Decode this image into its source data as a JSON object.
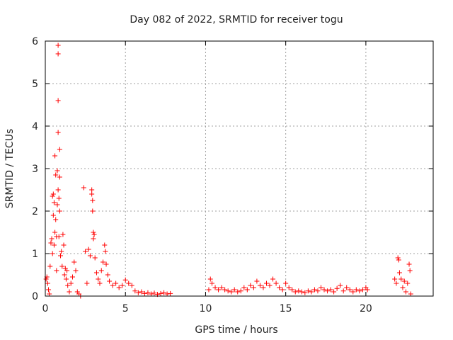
{
  "chart_data": {
    "type": "scatter",
    "title": "Day 082 of 2022, SRMTID for receiver togu",
    "xlabel": "GPS time / hours",
    "ylabel": "SRMTID / TECUs",
    "xlim": [
      0,
      24.2
    ],
    "ylim": [
      0,
      6
    ],
    "xticks": [
      0,
      5,
      10,
      15,
      20
    ],
    "xtick_labels": [
      "0",
      "5",
      "10",
      "15",
      "20"
    ],
    "yticks": [
      0,
      1,
      2,
      3,
      4,
      5,
      6
    ],
    "ytick_labels": [
      "0",
      "1",
      "2",
      "3",
      "4",
      "5",
      "6"
    ],
    "grid": true,
    "marker": "+",
    "color": "#ff0000",
    "series": [
      {
        "name": "SRMTID",
        "points": [
          [
            0.05,
            0.4
          ],
          [
            0.1,
            0.45
          ],
          [
            0.15,
            0.3
          ],
          [
            0.2,
            0.15
          ],
          [
            0.25,
            0.05
          ],
          [
            0.3,
            0.7
          ],
          [
            0.35,
            1.25
          ],
          [
            0.4,
            1.35
          ],
          [
            0.45,
            1.0
          ],
          [
            0.45,
            2.35
          ],
          [
            0.5,
            1.9
          ],
          [
            0.5,
            2.4
          ],
          [
            0.55,
            2.2
          ],
          [
            0.55,
            1.2
          ],
          [
            0.6,
            1.5
          ],
          [
            0.6,
            3.3
          ],
          [
            0.65,
            2.85
          ],
          [
            0.65,
            1.8
          ],
          [
            0.7,
            1.4
          ],
          [
            0.7,
            0.6
          ],
          [
            0.75,
            2.95
          ],
          [
            0.75,
            2.15
          ],
          [
            0.8,
            5.9
          ],
          [
            0.8,
            5.7
          ],
          [
            0.8,
            4.6
          ],
          [
            0.8,
            3.85
          ],
          [
            0.8,
            2.5
          ],
          [
            0.85,
            2.3
          ],
          [
            0.85,
            1.4
          ],
          [
            0.9,
            3.45
          ],
          [
            0.9,
            2.8
          ],
          [
            0.9,
            2.0
          ],
          [
            0.95,
            0.95
          ],
          [
            1.0,
            1.05
          ],
          [
            1.05,
            0.7
          ],
          [
            1.1,
            1.45
          ],
          [
            1.15,
            1.2
          ],
          [
            1.2,
            0.5
          ],
          [
            1.25,
            0.65
          ],
          [
            1.3,
            0.4
          ],
          [
            1.35,
            0.6
          ],
          [
            1.4,
            0.25
          ],
          [
            1.5,
            0.1
          ],
          [
            1.6,
            0.3
          ],
          [
            1.7,
            0.45
          ],
          [
            1.8,
            0.8
          ],
          [
            1.9,
            0.6
          ],
          [
            2.0,
            0.1
          ],
          [
            2.1,
            0.05
          ],
          [
            2.2,
            0.0
          ],
          [
            2.4,
            2.55
          ],
          [
            2.5,
            1.05
          ],
          [
            2.6,
            0.3
          ],
          [
            2.7,
            1.1
          ],
          [
            2.8,
            0.95
          ],
          [
            2.9,
            2.5
          ],
          [
            2.9,
            2.4
          ],
          [
            2.95,
            2.25
          ],
          [
            2.95,
            2.0
          ],
          [
            3.0,
            1.5
          ],
          [
            3.0,
            1.35
          ],
          [
            3.05,
            1.45
          ],
          [
            3.1,
            0.9
          ],
          [
            3.2,
            0.55
          ],
          [
            3.3,
            0.4
          ],
          [
            3.4,
            0.3
          ],
          [
            3.5,
            0.6
          ],
          [
            3.6,
            0.8
          ],
          [
            3.7,
            1.2
          ],
          [
            3.75,
            1.05
          ],
          [
            3.8,
            0.75
          ],
          [
            3.9,
            0.5
          ],
          [
            4.0,
            0.35
          ],
          [
            4.2,
            0.25
          ],
          [
            4.4,
            0.3
          ],
          [
            4.6,
            0.2
          ],
          [
            4.8,
            0.25
          ],
          [
            5.0,
            0.38
          ],
          [
            5.2,
            0.3
          ],
          [
            5.4,
            0.25
          ],
          [
            5.6,
            0.12
          ],
          [
            5.8,
            0.08
          ],
          [
            6.0,
            0.1
          ],
          [
            6.2,
            0.06
          ],
          [
            6.4,
            0.08
          ],
          [
            6.6,
            0.05
          ],
          [
            6.8,
            0.07
          ],
          [
            7.0,
            0.04
          ],
          [
            7.2,
            0.06
          ],
          [
            7.4,
            0.08
          ],
          [
            7.6,
            0.05
          ],
          [
            7.8,
            0.06
          ],
          [
            10.2,
            0.15
          ],
          [
            10.3,
            0.4
          ],
          [
            10.4,
            0.3
          ],
          [
            10.6,
            0.2
          ],
          [
            10.8,
            0.15
          ],
          [
            11.0,
            0.2
          ],
          [
            11.2,
            0.15
          ],
          [
            11.4,
            0.12
          ],
          [
            11.6,
            0.1
          ],
          [
            11.8,
            0.15
          ],
          [
            12.0,
            0.1
          ],
          [
            12.2,
            0.12
          ],
          [
            12.4,
            0.2
          ],
          [
            12.6,
            0.15
          ],
          [
            12.8,
            0.25
          ],
          [
            13.0,
            0.2
          ],
          [
            13.2,
            0.35
          ],
          [
            13.4,
            0.25
          ],
          [
            13.6,
            0.2
          ],
          [
            13.8,
            0.3
          ],
          [
            14.0,
            0.25
          ],
          [
            14.2,
            0.4
          ],
          [
            14.4,
            0.3
          ],
          [
            14.6,
            0.2
          ],
          [
            14.8,
            0.15
          ],
          [
            15.0,
            0.3
          ],
          [
            15.2,
            0.2
          ],
          [
            15.4,
            0.15
          ],
          [
            15.6,
            0.1
          ],
          [
            15.8,
            0.12
          ],
          [
            16.0,
            0.1
          ],
          [
            16.2,
            0.08
          ],
          [
            16.4,
            0.12
          ],
          [
            16.6,
            0.1
          ],
          [
            16.8,
            0.15
          ],
          [
            17.0,
            0.12
          ],
          [
            17.2,
            0.2
          ],
          [
            17.4,
            0.15
          ],
          [
            17.6,
            0.12
          ],
          [
            17.8,
            0.15
          ],
          [
            18.0,
            0.1
          ],
          [
            18.2,
            0.18
          ],
          [
            18.4,
            0.25
          ],
          [
            18.6,
            0.12
          ],
          [
            18.8,
            0.2
          ],
          [
            19.0,
            0.15
          ],
          [
            19.2,
            0.1
          ],
          [
            19.4,
            0.15
          ],
          [
            19.6,
            0.12
          ],
          [
            19.8,
            0.15
          ],
          [
            20.0,
            0.2
          ],
          [
            20.1,
            0.15
          ],
          [
            21.8,
            0.4
          ],
          [
            21.9,
            0.3
          ],
          [
            22.0,
            0.9
          ],
          [
            22.05,
            0.85
          ],
          [
            22.1,
            0.55
          ],
          [
            22.2,
            0.4
          ],
          [
            22.3,
            0.2
          ],
          [
            22.4,
            0.35
          ],
          [
            22.5,
            0.1
          ],
          [
            22.6,
            0.3
          ],
          [
            22.7,
            0.75
          ],
          [
            22.75,
            0.6
          ],
          [
            22.8,
            0.05
          ]
        ]
      }
    ]
  }
}
